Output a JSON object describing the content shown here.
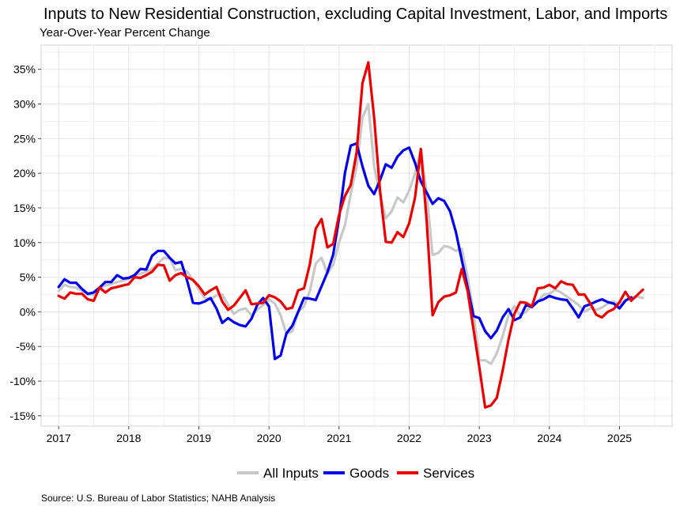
{
  "title": "Inputs to New Residential Construction, excluding Capital Investment, Labor, and Imports",
  "subtitle": "Year-Over-Year Percent Change",
  "source": "Source: U.S. Bureau of Labor Statistics; NAHB Analysis",
  "legend": {
    "position": "bottom-center"
  },
  "chart_data": {
    "type": "line",
    "title": "Inputs to New Residential Construction, excluding Capital Investment, Labor, and Imports",
    "subtitle": "Year-Over-Year Percent Change",
    "x_start": "2017-01",
    "x_frequency": "monthly",
    "x_ticks": [
      "2017",
      "2018",
      "2019",
      "2020",
      "2021",
      "2022",
      "2023",
      "2024",
      "2025"
    ],
    "y_ticks": [
      "-15%",
      "-10%",
      "-5%",
      "0%",
      "5%",
      "10%",
      "15%",
      "20%",
      "25%",
      "30%",
      "35%"
    ],
    "ylim": [
      -16.5,
      38.5
    ],
    "xlim": [
      "2016-10",
      "2025-10"
    ],
    "grid": true,
    "series": [
      {
        "name": "All Inputs",
        "color": "#c8c8c8",
        "values": [
          3.0,
          3.9,
          3.6,
          3.5,
          3.0,
          2.5,
          2.5,
          3.5,
          3.8,
          4.0,
          4.3,
          4.5,
          4.8,
          5.2,
          5.5,
          5.8,
          6.2,
          7.0,
          7.8,
          7.7,
          6.0,
          6.2,
          5.8,
          4.6,
          3.2,
          2.0,
          1.8,
          2.4,
          2.5,
          1.0,
          -0.3,
          0.3,
          0.5,
          -0.5,
          0.3,
          1.0,
          1.8,
          1.2,
          -0.5,
          -3.2,
          -2.8,
          0.0,
          0.8,
          3.0,
          7.0,
          7.8,
          5.5,
          6.8,
          10.0,
          12.5,
          17.0,
          21.0,
          28.0,
          30.0,
          21.0,
          17.0,
          13.5,
          14.5,
          16.5,
          15.8,
          17.5,
          20.0,
          23.5,
          17.0,
          8.2,
          8.5,
          9.5,
          9.3,
          8.8,
          9.1,
          5.0,
          0.0,
          -7.0,
          -7.0,
          -7.5,
          -6.0,
          -3.5,
          -0.5,
          0.8,
          -0.5,
          0.0,
          1.0,
          1.5,
          2.5,
          2.6,
          3.2,
          2.8,
          2.2,
          1.6,
          1.0,
          0.0,
          0.5,
          0.3,
          0.6,
          1.2,
          1.5,
          1.0,
          1.7,
          2.1,
          2.2,
          2.0
        ]
      },
      {
        "name": "Goods",
        "color": "#0000ee",
        "values": [
          3.6,
          4.7,
          4.2,
          4.2,
          3.3,
          2.6,
          2.8,
          3.5,
          4.3,
          4.3,
          5.3,
          4.8,
          4.9,
          5.3,
          6.2,
          6.1,
          8.1,
          8.8,
          8.8,
          7.8,
          7.0,
          7.2,
          4.5,
          1.3,
          1.2,
          1.5,
          2.0,
          0.5,
          -1.6,
          -0.9,
          -1.5,
          -1.9,
          -2.1,
          -1.0,
          1.0,
          2.0,
          0.8,
          -6.8,
          -6.3,
          -3.1,
          -2.0,
          0.0,
          2.0,
          1.9,
          1.7,
          3.7,
          5.7,
          8.3,
          13.5,
          20.0,
          24.0,
          24.3,
          21.0,
          18.2,
          17.0,
          19.0,
          21.3,
          20.8,
          22.4,
          23.3,
          23.7,
          21.5,
          18.8,
          17.2,
          15.6,
          16.4,
          16.0,
          14.5,
          11.5,
          7.5,
          3.5,
          -0.6,
          -0.9,
          -2.8,
          -3.8,
          -2.7,
          -0.8,
          0.4,
          -1.2,
          -0.8,
          1.0,
          0.7,
          1.5,
          1.8,
          2.3,
          2.0,
          1.8,
          1.7,
          0.5,
          -0.8,
          0.8,
          1.1,
          1.5,
          1.8,
          1.4,
          1.2,
          0.5,
          1.6,
          2.1
        ]
      },
      {
        "name": "Services",
        "color": "#ee0000",
        "values": [
          2.3,
          1.9,
          2.8,
          2.6,
          2.6,
          1.8,
          1.6,
          3.5,
          2.8,
          3.4,
          3.6,
          3.8,
          4.0,
          5.0,
          4.9,
          5.3,
          5.8,
          6.8,
          6.7,
          4.5,
          5.3,
          5.6,
          5.0,
          4.6,
          3.7,
          2.5,
          3.1,
          3.6,
          1.5,
          0.3,
          0.9,
          2.0,
          3.1,
          1.1,
          1.2,
          1.3,
          2.4,
          2.1,
          1.5,
          0.4,
          0.6,
          3.1,
          3.4,
          6.9,
          12.0,
          13.4,
          9.3,
          9.8,
          14.0,
          16.7,
          18.3,
          23.0,
          33.0,
          36.0,
          28.0,
          17.5,
          10.1,
          10.0,
          11.5,
          10.8,
          12.8,
          16.5,
          23.5,
          13.0,
          -0.5,
          1.4,
          2.2,
          2.4,
          2.8,
          6.2,
          3.0,
          -2.5,
          -8.0,
          -13.8,
          -13.5,
          -12.4,
          -8.5,
          -4.0,
          -0.3,
          1.4,
          1.3,
          0.8,
          3.4,
          3.5,
          3.9,
          3.4,
          4.4,
          4.0,
          3.9,
          2.5,
          2.5,
          1.2,
          -0.4,
          -0.8,
          0.0,
          0.4,
          1.4,
          2.9,
          1.6,
          2.4,
          3.2
        ]
      }
    ]
  }
}
